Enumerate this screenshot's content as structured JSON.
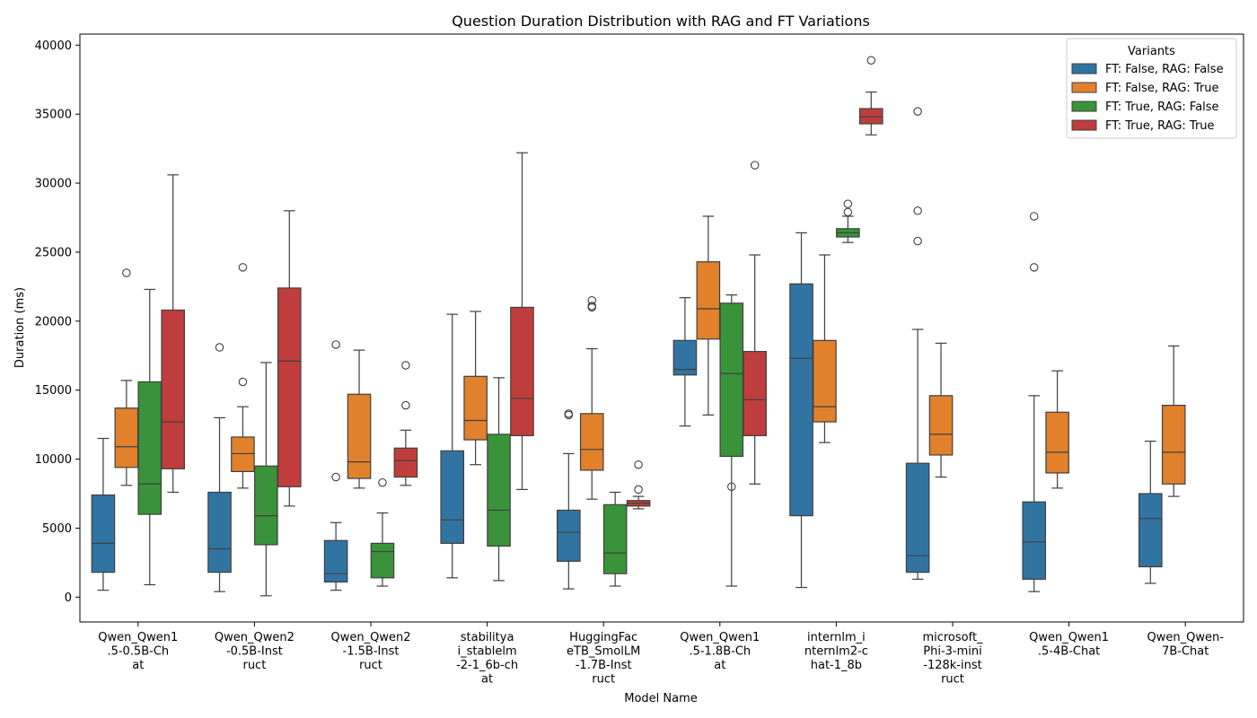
{
  "chart_data": {
    "type": "box",
    "title": "Question Duration Distribution with RAG and FT Variations",
    "xlabel": "Model Name",
    "ylabel": "Duration (ms)",
    "ylim": [
      -1800,
      40800
    ],
    "yticks": [
      0,
      5000,
      10000,
      15000,
      20000,
      25000,
      30000,
      35000,
      40000
    ],
    "legend": {
      "title": "Variants",
      "position": "top-right"
    },
    "categories": [
      [
        "Qwen_Qwen1",
        ".5-0.5B-Ch",
        "at"
      ],
      [
        "Qwen_Qwen2",
        "-0.5B-Inst",
        "ruct"
      ],
      [
        "Qwen_Qwen2",
        "-1.5B-Inst",
        "ruct"
      ],
      [
        "stabilitya",
        "i_stablelm",
        "-2-1_6b-ch",
        "at"
      ],
      [
        "HuggingFac",
        "eTB_SmolLM",
        "-1.7B-Inst",
        "ruct"
      ],
      [
        "Qwen_Qwen1",
        ".5-1.8B-Ch",
        "at"
      ],
      [
        "internlm_i",
        "nternlm2-c",
        "hat-1_8b"
      ],
      [
        "microsoft_",
        "Phi-3-mini",
        "-128k-inst",
        "ruct"
      ],
      [
        "Qwen_Qwen1",
        ".5-4B-Chat"
      ],
      [
        "Qwen_Qwen-",
        "7B-Chat"
      ]
    ],
    "series": [
      {
        "name": "FT: False, RAG: False",
        "color": "#1f77b4",
        "fill": "#3274a1",
        "boxes": [
          {
            "cat": 0,
            "whislo": 500,
            "q1": 1800,
            "med": 3900,
            "q3": 7400,
            "whishi": 11500,
            "fliers": []
          },
          {
            "cat": 1,
            "whislo": 400,
            "q1": 1800,
            "med": 3500,
            "q3": 7600,
            "whishi": 13000,
            "fliers": [
              18100
            ]
          },
          {
            "cat": 2,
            "whislo": 500,
            "q1": 1100,
            "med": 1700,
            "q3": 4100,
            "whishi": 5400,
            "fliers": [
              8700,
              18300
            ]
          },
          {
            "cat": 3,
            "whislo": 1400,
            "q1": 3900,
            "med": 5600,
            "q3": 10600,
            "whishi": 20500,
            "fliers": []
          },
          {
            "cat": 4,
            "whislo": 600,
            "q1": 2600,
            "med": 4700,
            "q3": 6300,
            "whishi": 10400,
            "fliers": [
              13200,
              13300
            ]
          },
          {
            "cat": 5,
            "whislo": 12400,
            "q1": 16100,
            "med": 16500,
            "q3": 18600,
            "whishi": 21700,
            "fliers": []
          },
          {
            "cat": 6,
            "whislo": 700,
            "q1": 5900,
            "med": 17300,
            "q3": 22700,
            "whishi": 26400,
            "fliers": []
          },
          {
            "cat": 7,
            "whislo": 1300,
            "q1": 1800,
            "med": 3000,
            "q3": 9700,
            "whishi": 19400,
            "fliers": [
              25800,
              28000,
              35200
            ]
          },
          {
            "cat": 8,
            "whislo": 400,
            "q1": 1300,
            "med": 4000,
            "q3": 6900,
            "whishi": 14600,
            "fliers": [
              23900,
              27600
            ]
          },
          {
            "cat": 9,
            "whislo": 1000,
            "q1": 2200,
            "med": 5700,
            "q3": 7500,
            "whishi": 11300,
            "fliers": []
          }
        ]
      },
      {
        "name": "FT: False, RAG: True",
        "color": "#ff7f0e",
        "fill": "#e1812c",
        "boxes": [
          {
            "cat": 0,
            "whislo": 8100,
            "q1": 9400,
            "med": 10900,
            "q3": 13700,
            "whishi": 15700,
            "fliers": [
              23500
            ]
          },
          {
            "cat": 1,
            "whislo": 7900,
            "q1": 9100,
            "med": 10400,
            "q3": 11600,
            "whishi": 13800,
            "fliers": [
              15600,
              23900
            ]
          },
          {
            "cat": 2,
            "whislo": 7900,
            "q1": 8600,
            "med": 9800,
            "q3": 14700,
            "whishi": 17900,
            "fliers": []
          },
          {
            "cat": 3,
            "whislo": 9600,
            "q1": 11400,
            "med": 12800,
            "q3": 16000,
            "whishi": 20700,
            "fliers": []
          },
          {
            "cat": 4,
            "whislo": 7100,
            "q1": 9200,
            "med": 10700,
            "q3": 13300,
            "whishi": 18000,
            "fliers": [
              21000,
              21100,
              21500
            ]
          },
          {
            "cat": 5,
            "whislo": 13200,
            "q1": 18700,
            "med": 20900,
            "q3": 24300,
            "whishi": 27600,
            "fliers": []
          },
          {
            "cat": 6,
            "whislo": 11200,
            "q1": 12700,
            "med": 13800,
            "q3": 18600,
            "whishi": 24800,
            "fliers": []
          },
          {
            "cat": 7,
            "whislo": 8700,
            "q1": 10300,
            "med": 11800,
            "q3": 14600,
            "whishi": 18400,
            "fliers": []
          },
          {
            "cat": 8,
            "whislo": 7900,
            "q1": 9000,
            "med": 10500,
            "q3": 13400,
            "whishi": 16400,
            "fliers": []
          },
          {
            "cat": 9,
            "whislo": 7300,
            "q1": 8200,
            "med": 10500,
            "q3": 13900,
            "whishi": 18200,
            "fliers": []
          }
        ]
      },
      {
        "name": "FT: True, RAG: False",
        "color": "#2ca02c",
        "fill": "#3a923a",
        "boxes": [
          {
            "cat": 0,
            "whislo": 900,
            "q1": 6000,
            "med": 8200,
            "q3": 15600,
            "whishi": 22300,
            "fliers": []
          },
          {
            "cat": 1,
            "whislo": 100,
            "q1": 3800,
            "med": 5900,
            "q3": 9500,
            "whishi": 17000,
            "fliers": []
          },
          {
            "cat": 2,
            "whislo": 800,
            "q1": 1400,
            "med": 3300,
            "q3": 3900,
            "whishi": 6100,
            "fliers": [
              8300
            ]
          },
          {
            "cat": 3,
            "whislo": 1200,
            "q1": 3700,
            "med": 6300,
            "q3": 11800,
            "whishi": 15900,
            "fliers": []
          },
          {
            "cat": 4,
            "whislo": 800,
            "q1": 1700,
            "med": 3200,
            "q3": 6700,
            "whishi": 7600,
            "fliers": []
          },
          {
            "cat": 5,
            "whislo": 800,
            "q1": 10200,
            "med": 16200,
            "q3": 21300,
            "whishi": 21900,
            "fliers": [
              8000
            ]
          },
          {
            "cat": 6,
            "whislo": 25700,
            "q1": 26100,
            "med": 26400,
            "q3": 26700,
            "whishi": 27600,
            "fliers": [
              27900,
              28500
            ]
          }
        ]
      },
      {
        "name": "FT: True, RAG: True",
        "color": "#d62728",
        "fill": "#c03d3e",
        "boxes": [
          {
            "cat": 0,
            "whislo": 7600,
            "q1": 9300,
            "med": 12700,
            "q3": 20800,
            "whishi": 30600,
            "fliers": []
          },
          {
            "cat": 1,
            "whislo": 6600,
            "q1": 8000,
            "med": 17100,
            "q3": 22400,
            "whishi": 28000,
            "fliers": []
          },
          {
            "cat": 2,
            "whislo": 8100,
            "q1": 8700,
            "med": 9900,
            "q3": 10800,
            "whishi": 12100,
            "fliers": [
              13900,
              16800
            ]
          },
          {
            "cat": 3,
            "whislo": 7800,
            "q1": 11700,
            "med": 14400,
            "q3": 21000,
            "whishi": 32200,
            "fliers": []
          },
          {
            "cat": 4,
            "whislo": 6400,
            "q1": 6600,
            "med": 6800,
            "q3": 7000,
            "whishi": 7300,
            "fliers": [
              7800,
              9600
            ]
          },
          {
            "cat": 5,
            "whislo": 8200,
            "q1": 11700,
            "med": 14300,
            "q3": 17800,
            "whishi": 24800,
            "fliers": [
              31300
            ]
          },
          {
            "cat": 6,
            "whislo": 33500,
            "q1": 34300,
            "med": 34800,
            "q3": 35400,
            "whishi": 36600,
            "fliers": [
              38900
            ]
          }
        ]
      }
    ]
  }
}
